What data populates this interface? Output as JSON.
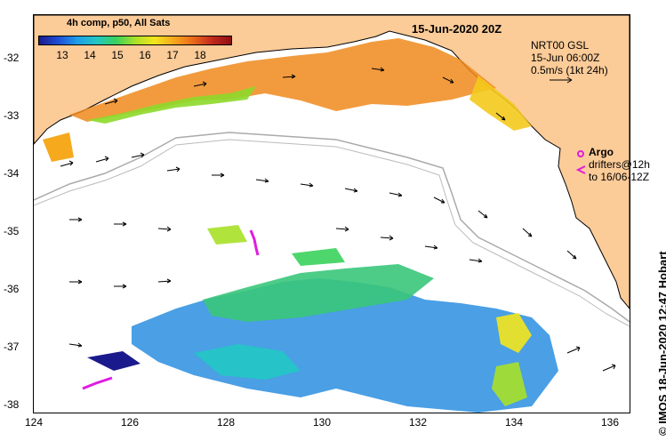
{
  "colorbar": {
    "title": "4h comp, p50, All Sats",
    "labels": [
      "13",
      "14",
      "15",
      "16",
      "17",
      "18"
    ]
  },
  "date_label": "15-Jun-2020 20Z",
  "info": {
    "line1": "NRT00 GSL",
    "line2": "15-Jun 06:00Z",
    "line3": "0.5m/s (1kt 24h)"
  },
  "legend": {
    "argo": "Argo",
    "drifters_line1": "drifters@12h",
    "drifters_line2": "to 16/06-12Z"
  },
  "credit": "© IMOS 18-Jun-2020 12:47 Hobart",
  "y_ticks": [
    "-32",
    "-33",
    "-34",
    "-35",
    "-36",
    "-37",
    "-38"
  ],
  "x_ticks": [
    "124",
    "126",
    "128",
    "130",
    "132",
    "134",
    "136"
  ],
  "colors": {
    "land": "#fbcb98",
    "sst_warm": "#f08a1c",
    "sst_mid": "#8dd92a",
    "sst_cool": "#2a8ee0",
    "argo": "#e01be0",
    "bathymetry": "#aaaaaa"
  }
}
